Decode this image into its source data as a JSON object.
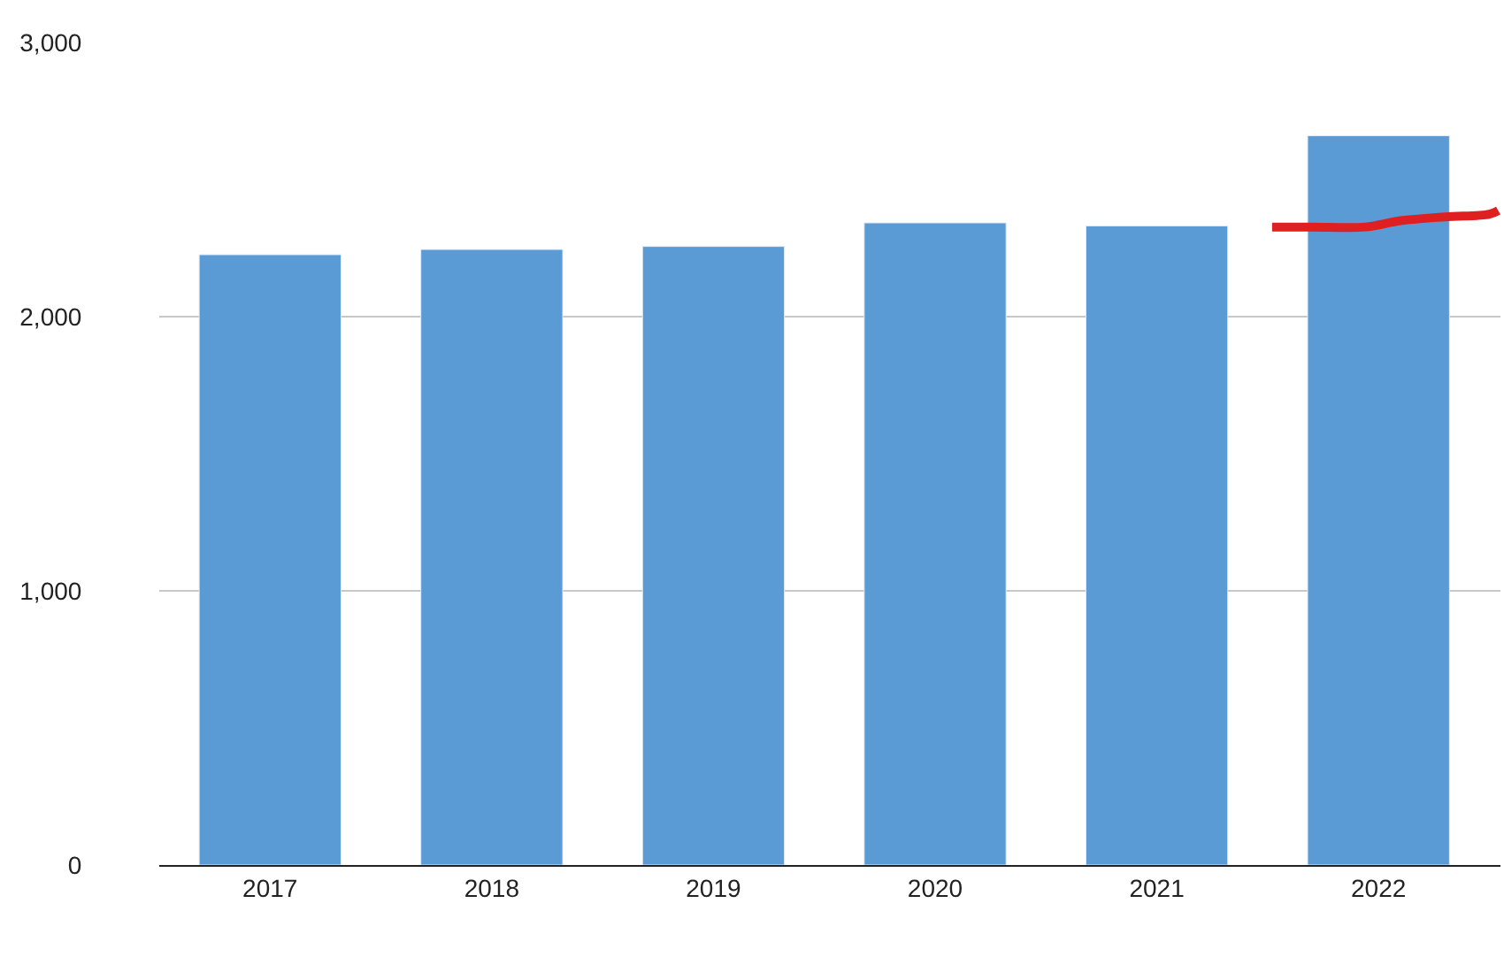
{
  "chart_data": {
    "type": "bar",
    "x": [
      2017,
      2018,
      2019,
      2020,
      2021,
      2022
    ],
    "series": [
      {
        "color": "#5b9bd5",
        "values": [
          2226,
          2245,
          2256,
          2342,
          2331,
          2660
        ]
      },
      {
        "type": "line",
        "color": "#e02020",
        "x": [
          2021.52,
          2021.7,
          2021.94,
          2022.1,
          2022.3,
          2022.5,
          2022.54
        ],
        "values": [
          2327,
          2327,
          2327,
          2350,
          2364,
          2374,
          2387
        ]
      }
    ],
    "xlim": [
      2016.5,
      2022.55
    ],
    "xticks": [
      2017,
      2018,
      2019,
      2020,
      2021,
      2022
    ],
    "ylim": [
      0,
      3000
    ],
    "yticks": [
      {
        "value": 0,
        "label": "0"
      },
      {
        "value": 1000,
        "label": "1,000"
      },
      {
        "value": 2000,
        "label": "2,000"
      },
      {
        "value": 3000,
        "label": "3,000"
      }
    ],
    "grid": "y"
  }
}
